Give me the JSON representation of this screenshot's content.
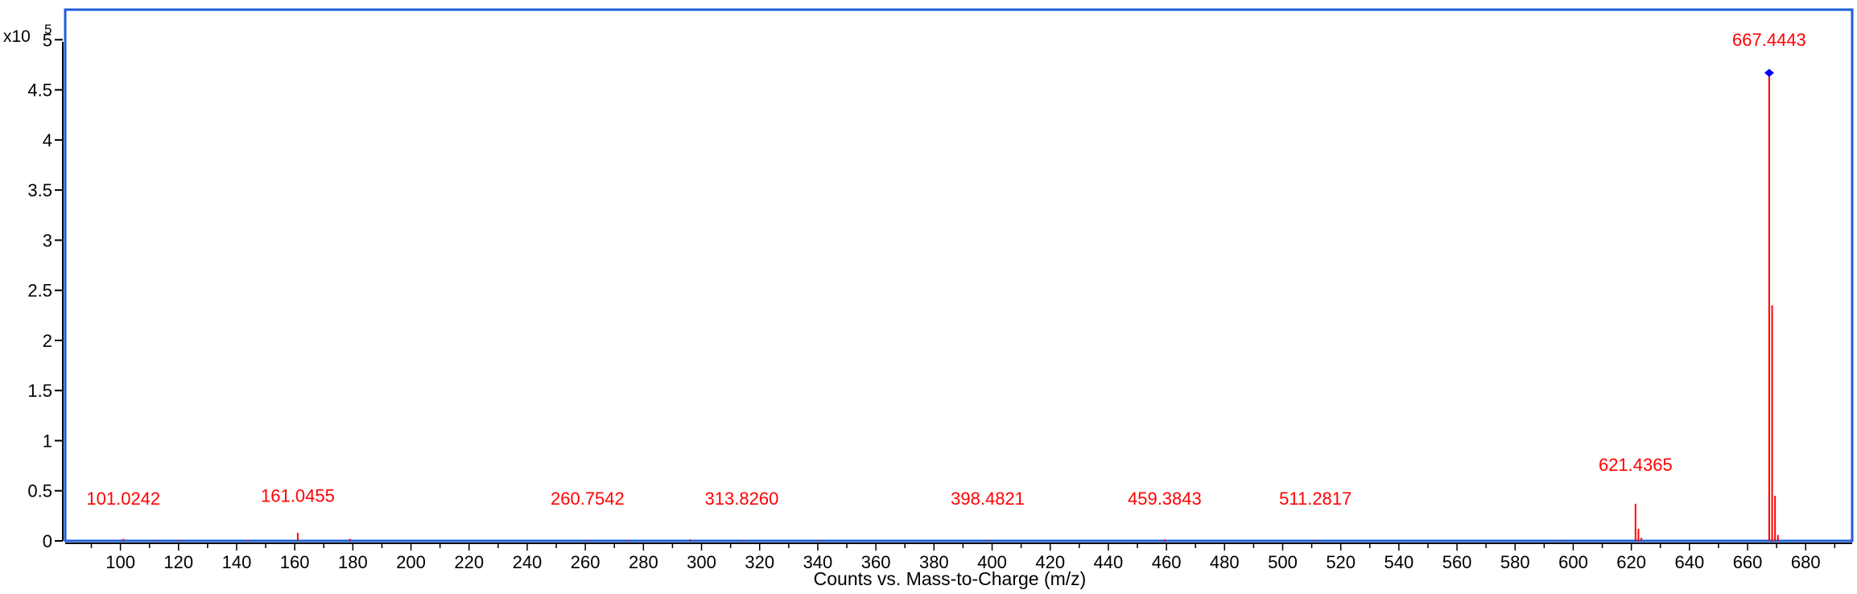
{
  "chart_data": {
    "type": "bar",
    "title": "",
    "xlabel": "Counts vs. Mass-to-Charge (m/z)",
    "ylabel": "",
    "y_multiplier_base": "x10",
    "y_multiplier_exp": "5",
    "xlim": [
      81,
      696
    ],
    "ylim": [
      0,
      5.3
    ],
    "grid": false,
    "x_ticks": [
      100,
      120,
      140,
      160,
      180,
      200,
      220,
      240,
      260,
      280,
      300,
      320,
      340,
      360,
      380,
      400,
      420,
      440,
      460,
      480,
      500,
      520,
      540,
      560,
      580,
      600,
      620,
      640,
      660,
      680
    ],
    "y_ticks": [
      {
        "value": 0,
        "label": "0"
      },
      {
        "value": 0.5,
        "label": "0.5"
      },
      {
        "value": 1,
        "label": "1"
      },
      {
        "value": 1.5,
        "label": "1.5"
      },
      {
        "value": 2,
        "label": "2"
      },
      {
        "value": 2.5,
        "label": "2.5"
      },
      {
        "value": 3,
        "label": "3"
      },
      {
        "value": 3.5,
        "label": "3.5"
      },
      {
        "value": 4,
        "label": "4"
      },
      {
        "value": 4.5,
        "label": "4.5"
      },
      {
        "value": 5,
        "label": "5"
      }
    ],
    "colors": {
      "peaks": "#ff0000",
      "frame": "#1f5fd6",
      "marker": "#0000ff",
      "axis": "#000000"
    },
    "peaks": [
      {
        "mz": 101.0242,
        "intensity": 0.02,
        "label": "101.0242"
      },
      {
        "mz": 112,
        "intensity": 0.008
      },
      {
        "mz": 120,
        "intensity": 0.01
      },
      {
        "mz": 144,
        "intensity": 0.01
      },
      {
        "mz": 161.0455,
        "intensity": 0.08,
        "label": "161.0455"
      },
      {
        "mz": 179,
        "intensity": 0.02
      },
      {
        "mz": 260.7542,
        "intensity": 0.01,
        "label": "260.7542"
      },
      {
        "mz": 275,
        "intensity": 0.01
      },
      {
        "mz": 296,
        "intensity": 0.015
      },
      {
        "mz": 313.826,
        "intensity": 0.01,
        "label": "313.8260"
      },
      {
        "mz": 340,
        "intensity": 0.012
      },
      {
        "mz": 398.4821,
        "intensity": 0.012,
        "label": "398.4821"
      },
      {
        "mz": 459.3843,
        "intensity": 0.015,
        "label": "459.3843"
      },
      {
        "mz": 511.2817,
        "intensity": 0.01,
        "label": "511.2817"
      },
      {
        "mz": 596,
        "intensity": 0.01
      },
      {
        "mz": 621.4365,
        "intensity": 0.37,
        "label": "621.4365"
      },
      {
        "mz": 622.44,
        "intensity": 0.12
      },
      {
        "mz": 623.44,
        "intensity": 0.03
      },
      {
        "mz": 667.4443,
        "intensity": 4.67,
        "label": "667.4443",
        "marker": true
      },
      {
        "mz": 668.45,
        "intensity": 2.35
      },
      {
        "mz": 669.45,
        "intensity": 0.45
      },
      {
        "mz": 670.45,
        "intensity": 0.06
      }
    ],
    "label_heights": {
      "101.0242": 0.36,
      "161.0455": 0.39,
      "260.7542": 0.36,
      "313.8260": 0.36,
      "398.4821": 0.36,
      "459.3843": 0.36,
      "511.2817": 0.36,
      "621.4365": 0.7,
      "667.4443": 4.94
    }
  }
}
